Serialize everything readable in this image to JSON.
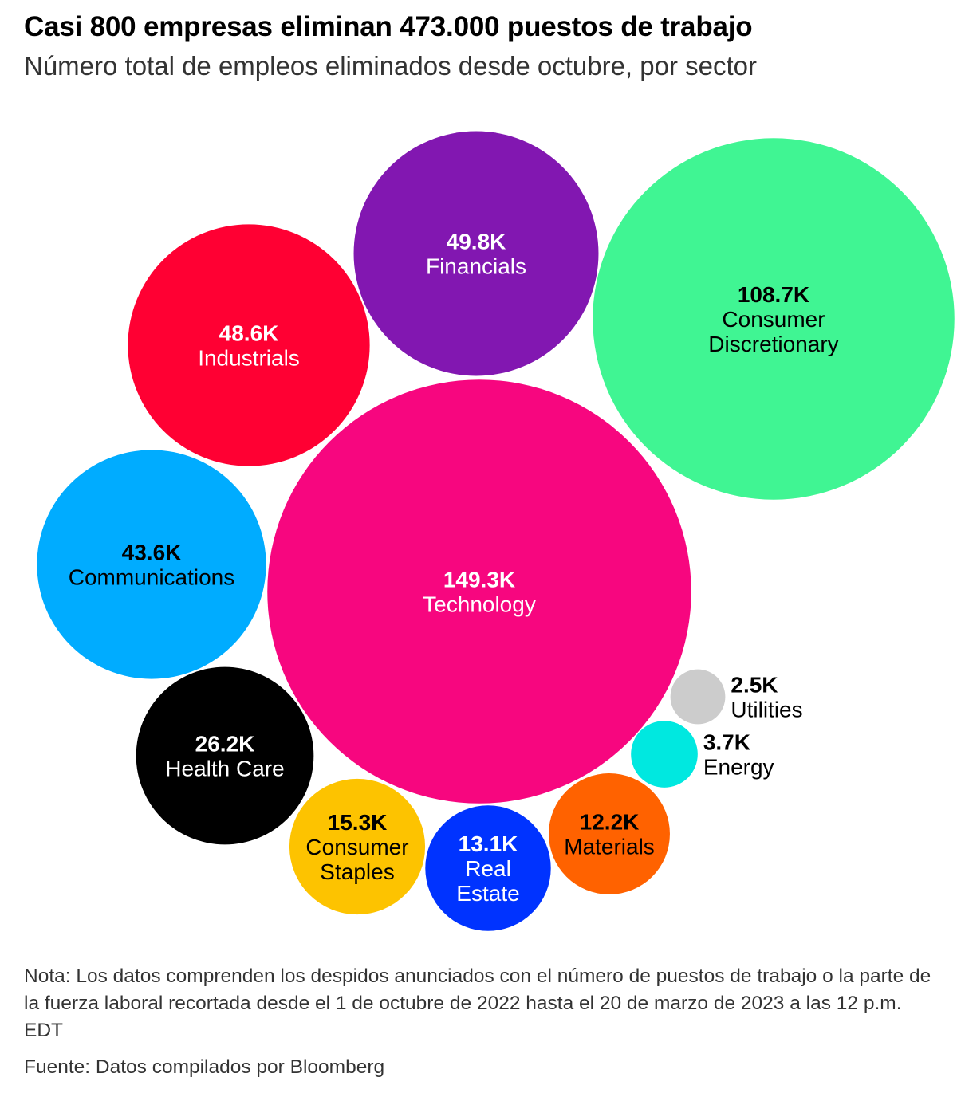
{
  "header": {
    "title": "Casi 800 empresas eliminan 473.000 puestos de trabajo",
    "subtitle": "Número total de empleos eliminados desde octubre, por sector"
  },
  "footer": {
    "note": "Nota: Los datos comprenden los despidos anunciados con el número de puestos de trabajo o la parte de la fuerza laboral recortada desde el 1 de octubre de 2022 hasta el 20 de marzo de 2023 a las 12 p.m. EDT",
    "source": "Fuente: Datos compilados por Bloomberg"
  },
  "chart_data": {
    "type": "bubble",
    "title": "Casi 800 empresas eliminan 473.000 puestos de trabajo",
    "subtitle": "Número total de empleos eliminados desde octubre, por sector",
    "unit": "K",
    "series": [
      {
        "name": "Technology",
        "value": 149.3,
        "label": "149.3K",
        "lines": [
          "Technology"
        ],
        "color": "#f7067f"
      },
      {
        "name": "Consumer Discretionary",
        "value": 108.7,
        "label": "108.7K",
        "lines": [
          "Consumer",
          "Discretionary"
        ],
        "color": "#40f593"
      },
      {
        "name": "Financials",
        "value": 49.8,
        "label": "49.8K",
        "lines": [
          "Financials"
        ],
        "color": "#8217b1"
      },
      {
        "name": "Industrials",
        "value": 48.6,
        "label": "48.6K",
        "lines": [
          "Industrials"
        ],
        "color": "#ff0033"
      },
      {
        "name": "Communications",
        "value": 43.6,
        "label": "43.6K",
        "lines": [
          "Communications"
        ],
        "color": "#00acff"
      },
      {
        "name": "Health Care",
        "value": 26.2,
        "label": "26.2K",
        "lines": [
          "Health Care"
        ],
        "color": "#000000"
      },
      {
        "name": "Consumer Staples",
        "value": 15.3,
        "label": "15.3K",
        "lines": [
          "Consumer",
          "Staples"
        ],
        "color": "#fdc300"
      },
      {
        "name": "Real Estate",
        "value": 13.1,
        "label": "13.1K",
        "lines": [
          "Real",
          "Estate"
        ],
        "color": "#0033ff"
      },
      {
        "name": "Materials",
        "value": 12.2,
        "label": "12.2K",
        "lines": [
          "Materials"
        ],
        "color": "#ff6200"
      },
      {
        "name": "Energy",
        "value": 3.7,
        "label": "3.7K",
        "lines": [
          "Energy"
        ],
        "color": "#00e8e0"
      },
      {
        "name": "Utilities",
        "value": 2.5,
        "label": "2.5K",
        "lines": [
          "Utilities"
        ],
        "color": "#cccccc"
      }
    ]
  }
}
